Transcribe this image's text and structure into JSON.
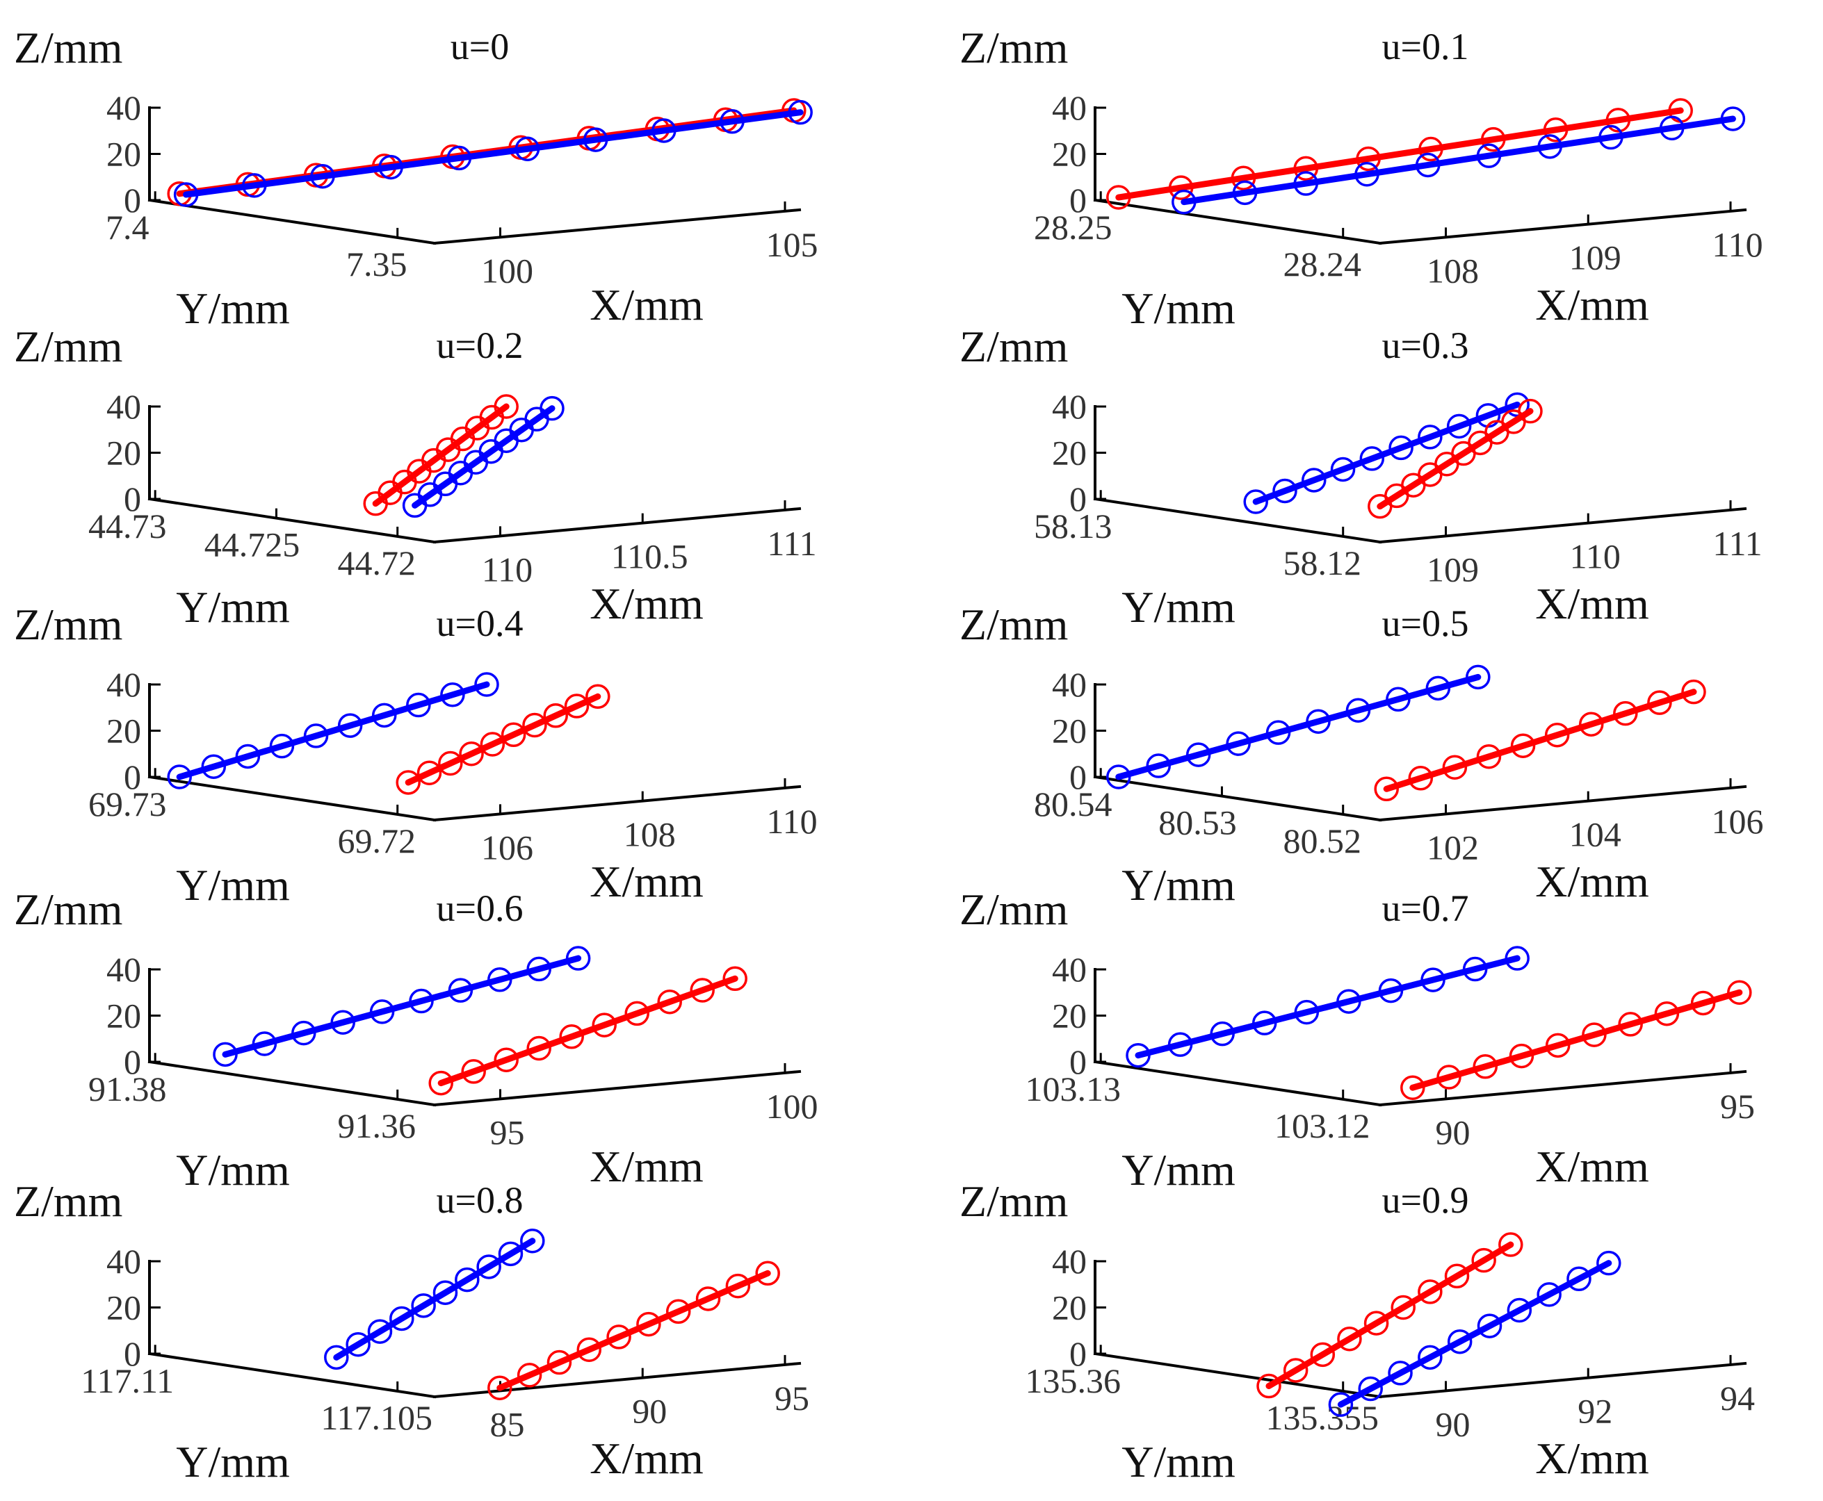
{
  "chart_data": [
    {
      "type": "line3d",
      "title": "u=0",
      "xlabel": "X/mm",
      "ylabel": "Y/mm",
      "zlabel": "Z/mm",
      "x_ticks": [
        "100",
        "105"
      ],
      "y_ticks": [
        "7.4",
        "7.35"
      ],
      "z_ticks": [
        "0",
        "20",
        "40"
      ],
      "series": [
        {
          "name": "red",
          "color": "#ff0000",
          "start": [
            0.03,
            0.07
          ],
          "end": [
            0.97,
            0.97
          ],
          "markers": 10
        },
        {
          "name": "blue",
          "color": "#0000ff",
          "start": [
            0.04,
            0.06
          ],
          "end": [
            0.98,
            0.95
          ],
          "markers": 10
        }
      ]
    },
    {
      "type": "line3d",
      "title": "u=0.1",
      "xlabel": "X/mm",
      "ylabel": "Y/mm",
      "zlabel": "Z/mm",
      "x_ticks": [
        "108",
        "109",
        "110"
      ],
      "y_ticks": [
        "28.25",
        "28.24"
      ],
      "z_ticks": [
        "0",
        "20",
        "40"
      ],
      "series": [
        {
          "name": "red",
          "color": "#ff0000",
          "start": [
            0.02,
            0.03
          ],
          "end": [
            0.88,
            0.97
          ],
          "markers": 10
        },
        {
          "name": "blue",
          "color": "#0000ff",
          "start": [
            0.12,
            -0.02
          ],
          "end": [
            0.96,
            0.88
          ],
          "markers": 10
        }
      ]
    },
    {
      "type": "line3d",
      "title": "u=0.2",
      "xlabel": "X/mm",
      "ylabel": "Y/mm",
      "zlabel": "Z/mm",
      "x_ticks": [
        "110",
        "110.5",
        "111"
      ],
      "y_ticks": [
        "44.73",
        "44.725",
        "44.72"
      ],
      "z_ticks": [
        "0",
        "20",
        "40"
      ],
      "series": [
        {
          "name": "red",
          "color": "#ff0000",
          "start": [
            0.33,
            -0.05
          ],
          "end": [
            0.53,
            1.0
          ],
          "markers": 10
        },
        {
          "name": "blue",
          "color": "#0000ff",
          "start": [
            0.39,
            -0.07
          ],
          "end": [
            0.6,
            0.98
          ],
          "markers": 10
        }
      ]
    },
    {
      "type": "line3d",
      "title": "u=0.3",
      "xlabel": "X/mm",
      "ylabel": "Y/mm",
      "zlabel": "Z/mm",
      "x_ticks": [
        "109",
        "110",
        "111"
      ],
      "y_ticks": [
        "58.13",
        "58.12"
      ],
      "z_ticks": [
        "0",
        "20",
        "40"
      ],
      "series": [
        {
          "name": "blue",
          "color": "#0000ff",
          "start": [
            0.23,
            -0.03
          ],
          "end": [
            0.63,
            1.02
          ],
          "markers": 10
        },
        {
          "name": "red",
          "color": "#ff0000",
          "start": [
            0.42,
            -0.08
          ],
          "end": [
            0.65,
            0.95
          ],
          "markers": 10
        }
      ]
    },
    {
      "type": "line3d",
      "title": "u=0.4",
      "xlabel": "X/mm",
      "ylabel": "Y/mm",
      "zlabel": "Z/mm",
      "x_ticks": [
        "106",
        "108",
        "110"
      ],
      "y_ticks": [
        "69.73",
        "69.72"
      ],
      "z_ticks": [
        "0",
        "20",
        "40"
      ],
      "series": [
        {
          "name": "blue",
          "color": "#0000ff",
          "start": [
            0.03,
            0.0
          ],
          "end": [
            0.5,
            1.0
          ],
          "markers": 10
        },
        {
          "name": "red",
          "color": "#ff0000",
          "start": [
            0.38,
            -0.06
          ],
          "end": [
            0.67,
            0.87
          ],
          "markers": 10
        }
      ]
    },
    {
      "type": "line3d",
      "title": "u=0.5",
      "xlabel": "X/mm",
      "ylabel": "Y/mm",
      "zlabel": "Z/mm",
      "x_ticks": [
        "102",
        "104",
        "106"
      ],
      "y_ticks": [
        "80.54",
        "80.53",
        "80.52"
      ],
      "z_ticks": [
        "0",
        "20",
        "40"
      ],
      "series": [
        {
          "name": "blue",
          "color": "#0000ff",
          "start": [
            0.02,
            0.0
          ],
          "end": [
            0.57,
            1.08
          ],
          "markers": 10
        },
        {
          "name": "red",
          "color": "#ff0000",
          "start": [
            0.43,
            -0.13
          ],
          "end": [
            0.9,
            0.92
          ],
          "markers": 10
        }
      ]
    },
    {
      "type": "line3d",
      "title": "u=0.6",
      "xlabel": "X/mm",
      "ylabel": "Y/mm",
      "zlabel": "Z/mm",
      "x_ticks": [
        "95",
        "100"
      ],
      "y_ticks": [
        "91.38",
        "91.36"
      ],
      "z_ticks": [
        "0",
        "20",
        "40"
      ],
      "series": [
        {
          "name": "blue",
          "color": "#0000ff",
          "start": [
            0.1,
            0.08
          ],
          "end": [
            0.64,
            1.12
          ],
          "markers": 10
        },
        {
          "name": "red",
          "color": "#ff0000",
          "start": [
            0.43,
            -0.23
          ],
          "end": [
            0.88,
            0.9
          ],
          "markers": 10
        }
      ]
    },
    {
      "type": "line3d",
      "title": "u=0.7",
      "xlabel": "X/mm",
      "ylabel": "Y/mm",
      "zlabel": "Z/mm",
      "x_ticks": [
        "90",
        "95"
      ],
      "y_ticks": [
        "103.13",
        "103.12"
      ],
      "z_ticks": [
        "0",
        "20",
        "40"
      ],
      "series": [
        {
          "name": "blue",
          "color": "#0000ff",
          "start": [
            0.05,
            0.07
          ],
          "end": [
            0.63,
            1.12
          ],
          "markers": 10
        },
        {
          "name": "red",
          "color": "#ff0000",
          "start": [
            0.47,
            -0.28
          ],
          "end": [
            0.97,
            0.75
          ],
          "markers": 10
        }
      ]
    },
    {
      "type": "line3d",
      "title": "u=0.8",
      "xlabel": "X/mm",
      "ylabel": "Y/mm",
      "zlabel": "Z/mm",
      "x_ticks": [
        "85",
        "90",
        "95"
      ],
      "y_ticks": [
        "117.11",
        "117.105"
      ],
      "z_ticks": [
        "0",
        "20",
        "40"
      ],
      "series": [
        {
          "name": "blue",
          "color": "#0000ff",
          "start": [
            0.27,
            -0.04
          ],
          "end": [
            0.57,
            1.22
          ],
          "markers": 10
        },
        {
          "name": "red",
          "color": "#ff0000",
          "start": [
            0.52,
            -0.37
          ],
          "end": [
            0.93,
            0.87
          ],
          "markers": 10
        }
      ]
    },
    {
      "type": "line3d",
      "title": "u=0.9",
      "xlabel": "X/mm",
      "ylabel": "Y/mm",
      "zlabel": "Z/mm",
      "x_ticks": [
        "90",
        "92",
        "94"
      ],
      "y_ticks": [
        "135.36",
        "135.355"
      ],
      "z_ticks": [
        "0",
        "20",
        "40"
      ],
      "series": [
        {
          "name": "red",
          "color": "#ff0000",
          "start": [
            0.25,
            -0.35
          ],
          "end": [
            0.62,
            1.18
          ],
          "markers": 10
        },
        {
          "name": "blue",
          "color": "#0000ff",
          "start": [
            0.36,
            -0.55
          ],
          "end": [
            0.77,
            0.98
          ],
          "markers": 10
        }
      ]
    }
  ]
}
